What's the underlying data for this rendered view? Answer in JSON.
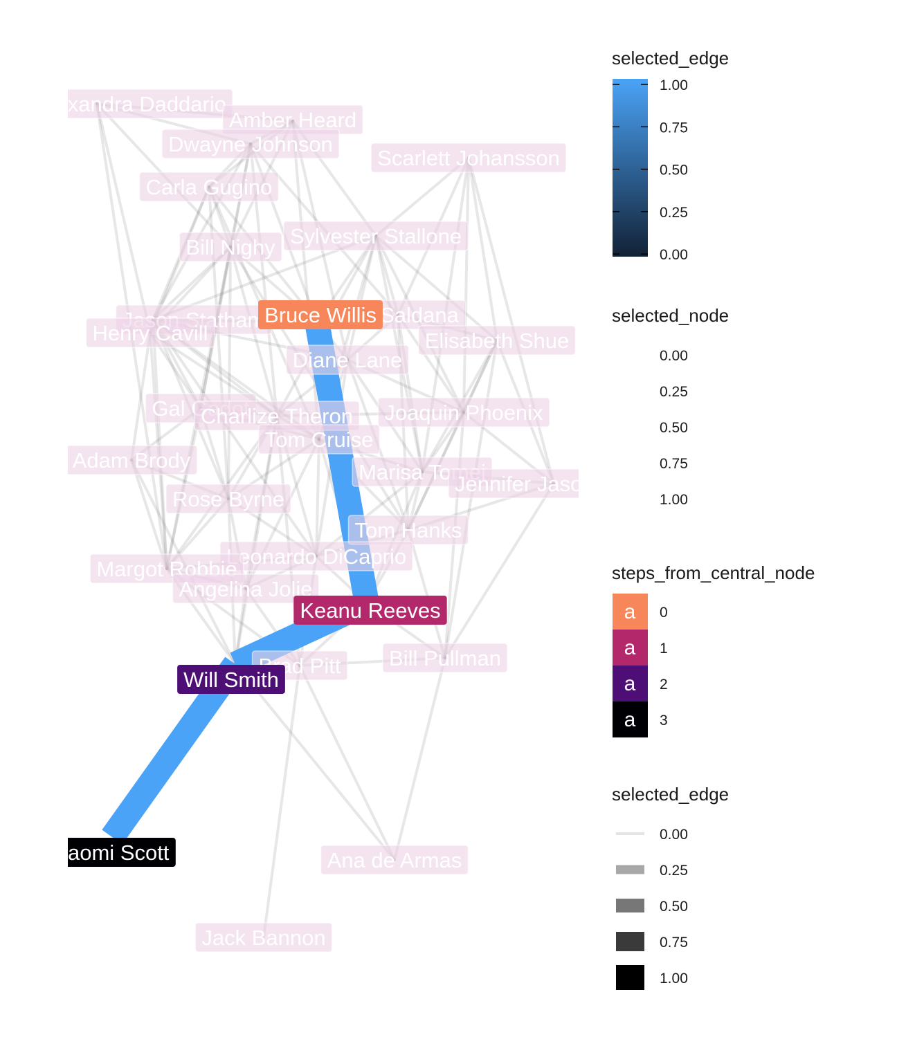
{
  "diagram": {
    "nodes": [
      {
        "id": "alexandra",
        "label": "Alexandra Daddario",
        "step": null,
        "selected": 0
      },
      {
        "id": "amber",
        "label": "Amber Heard",
        "step": null,
        "selected": 0
      },
      {
        "id": "dwayne",
        "label": "Dwayne Johnson",
        "step": null,
        "selected": 0
      },
      {
        "id": "scarlett",
        "label": "Scarlett Johansson",
        "step": null,
        "selected": 0
      },
      {
        "id": "carla",
        "label": "Carla Gugino",
        "step": null,
        "selected": 0
      },
      {
        "id": "sylvester",
        "label": "Sylvester Stallone",
        "step": null,
        "selected": 0
      },
      {
        "id": "billn",
        "label": "Bill Nighy",
        "step": null,
        "selected": 0
      },
      {
        "id": "jason",
        "label": "Jason Statham",
        "step": null,
        "selected": 0
      },
      {
        "id": "zoe",
        "label": "Zoe Saldana",
        "step": null,
        "selected": 0
      },
      {
        "id": "henry",
        "label": "Henry Cavill",
        "step": null,
        "selected": 0
      },
      {
        "id": "elisabeth",
        "label": "Elisabeth Shue",
        "step": null,
        "selected": 0
      },
      {
        "id": "diane",
        "label": "Diane Lane",
        "step": null,
        "selected": 0
      },
      {
        "id": "gal",
        "label": "Gal Gadot",
        "step": null,
        "selected": 0
      },
      {
        "id": "charlize",
        "label": "Charlize Theron",
        "step": null,
        "selected": 0
      },
      {
        "id": "joaquin",
        "label": "Joaquin Phoenix",
        "step": null,
        "selected": 0
      },
      {
        "id": "tomc",
        "label": "Tom Cruise",
        "step": null,
        "selected": 0
      },
      {
        "id": "adam",
        "label": "Adam Brody",
        "step": null,
        "selected": 0
      },
      {
        "id": "marisa",
        "label": "Marisa Tomei",
        "step": null,
        "selected": 0
      },
      {
        "id": "jennifer",
        "label": "Jennifer Jason Leigh",
        "step": null,
        "selected": 0
      },
      {
        "id": "rose",
        "label": "Rose Byrne",
        "step": null,
        "selected": 0
      },
      {
        "id": "tomh",
        "label": "Tom Hanks",
        "step": null,
        "selected": 0
      },
      {
        "id": "leonardo",
        "label": "Leonardo DiCaprio",
        "step": null,
        "selected": 0
      },
      {
        "id": "margot",
        "label": "Margot Robbie",
        "step": null,
        "selected": 0
      },
      {
        "id": "angelina",
        "label": "Angelina Jolie",
        "step": null,
        "selected": 0
      },
      {
        "id": "brad",
        "label": "Brad Pitt",
        "step": null,
        "selected": 0
      },
      {
        "id": "billp",
        "label": "Bill Pullman",
        "step": null,
        "selected": 0
      },
      {
        "id": "ana",
        "label": "Ana de Armas",
        "step": null,
        "selected": 0
      },
      {
        "id": "jack",
        "label": "Jack Bannon",
        "step": null,
        "selected": 0
      },
      {
        "id": "bruce",
        "label": "Bruce Willis",
        "step": 0,
        "selected": 1
      },
      {
        "id": "keanu",
        "label": "Keanu Reeves",
        "step": 1,
        "selected": 1
      },
      {
        "id": "will",
        "label": "Will Smith",
        "step": 2,
        "selected": 1
      },
      {
        "id": "naomi",
        "label": "Naomi Scott",
        "step": 3,
        "selected": 1
      }
    ],
    "highlighted_path": [
      "bruce",
      "keanu",
      "will",
      "naomi"
    ],
    "edges": [
      [
        "alexandra",
        "amber"
      ],
      [
        "alexandra",
        "dwayne"
      ],
      [
        "alexandra",
        "billn"
      ],
      [
        "alexandra",
        "henry"
      ],
      [
        "alexandra",
        "margot"
      ],
      [
        "amber",
        "dwayne"
      ],
      [
        "amber",
        "carla"
      ],
      [
        "amber",
        "billn"
      ],
      [
        "amber",
        "sylvester"
      ],
      [
        "amber",
        "diane"
      ],
      [
        "amber",
        "tomc"
      ],
      [
        "dwayne",
        "carla"
      ],
      [
        "dwayne",
        "billn"
      ],
      [
        "dwayne",
        "jason"
      ],
      [
        "dwayne",
        "bruce"
      ],
      [
        "dwayne",
        "zoe"
      ],
      [
        "dwayne",
        "gal"
      ],
      [
        "dwayne",
        "charlize"
      ],
      [
        "scarlett",
        "sylvester"
      ],
      [
        "scarlett",
        "zoe"
      ],
      [
        "scarlett",
        "elisabeth"
      ],
      [
        "scarlett",
        "marisa"
      ],
      [
        "scarlett",
        "jennifer"
      ],
      [
        "scarlett",
        "joaquin"
      ],
      [
        "carla",
        "billn"
      ],
      [
        "carla",
        "jason"
      ],
      [
        "carla",
        "henry"
      ],
      [
        "carla",
        "diane"
      ],
      [
        "carla",
        "tomc"
      ],
      [
        "carla",
        "rose"
      ],
      [
        "billn",
        "jason"
      ],
      [
        "billn",
        "bruce"
      ],
      [
        "billn",
        "henry"
      ],
      [
        "billn",
        "gal"
      ],
      [
        "billn",
        "charlize"
      ],
      [
        "billn",
        "rose"
      ],
      [
        "billn",
        "margot"
      ],
      [
        "billn",
        "tomh"
      ],
      [
        "sylvester",
        "bruce"
      ],
      [
        "sylvester",
        "zoe"
      ],
      [
        "sylvester",
        "diane"
      ],
      [
        "sylvester",
        "charlize"
      ],
      [
        "sylvester",
        "jason"
      ],
      [
        "sylvester",
        "tomc"
      ],
      [
        "sylvester",
        "marisa"
      ],
      [
        "sylvester",
        "elisabeth"
      ],
      [
        "sylvester",
        "joaquin"
      ],
      [
        "jason",
        "henry"
      ],
      [
        "jason",
        "bruce"
      ],
      [
        "jason",
        "diane"
      ],
      [
        "jason",
        "gal"
      ],
      [
        "jason",
        "charlize"
      ],
      [
        "jason",
        "rose"
      ],
      [
        "jason",
        "margot"
      ],
      [
        "jason",
        "leonardo"
      ],
      [
        "jason",
        "tomc"
      ],
      [
        "zoe",
        "elisabeth"
      ],
      [
        "zoe",
        "diane"
      ],
      [
        "zoe",
        "joaquin"
      ],
      [
        "zoe",
        "marisa"
      ],
      [
        "zoe",
        "tomh"
      ],
      [
        "henry",
        "gal"
      ],
      [
        "henry",
        "adam"
      ],
      [
        "henry",
        "margot"
      ],
      [
        "henry",
        "charlize"
      ],
      [
        "elisabeth",
        "joaquin"
      ],
      [
        "elisabeth",
        "marisa"
      ],
      [
        "elisabeth",
        "tomh"
      ],
      [
        "elisabeth",
        "billp"
      ],
      [
        "elisabeth",
        "jennifer"
      ],
      [
        "diane",
        "charlize"
      ],
      [
        "diane",
        "tomc"
      ],
      [
        "diane",
        "joaquin"
      ],
      [
        "diane",
        "marisa"
      ],
      [
        "diane",
        "tomh"
      ],
      [
        "diane",
        "leonardo"
      ],
      [
        "gal",
        "charlize"
      ],
      [
        "gal",
        "adam"
      ],
      [
        "gal",
        "rose"
      ],
      [
        "gal",
        "margot"
      ],
      [
        "gal",
        "tomc"
      ],
      [
        "charlize",
        "tomc"
      ],
      [
        "charlize",
        "joaquin"
      ],
      [
        "charlize",
        "rose"
      ],
      [
        "charlize",
        "leonardo"
      ],
      [
        "charlize",
        "angelina"
      ],
      [
        "charlize",
        "margot"
      ],
      [
        "charlize",
        "brad"
      ],
      [
        "joaquin",
        "marisa"
      ],
      [
        "joaquin",
        "tomh"
      ],
      [
        "joaquin",
        "jennifer"
      ],
      [
        "joaquin",
        "billp"
      ],
      [
        "tomc",
        "marisa"
      ],
      [
        "tomc",
        "rose"
      ],
      [
        "tomc",
        "leonardo"
      ],
      [
        "tomc",
        "angelina"
      ],
      [
        "tomc",
        "keanu"
      ],
      [
        "tomc",
        "tomh"
      ],
      [
        "adam",
        "rose"
      ],
      [
        "adam",
        "margot"
      ],
      [
        "adam",
        "will"
      ],
      [
        "marisa",
        "tomh"
      ],
      [
        "marisa",
        "jennifer"
      ],
      [
        "marisa",
        "keanu"
      ],
      [
        "marisa",
        "leonardo"
      ],
      [
        "jennifer",
        "billp"
      ],
      [
        "jennifer",
        "tomh"
      ],
      [
        "rose",
        "margot"
      ],
      [
        "rose",
        "leonardo"
      ],
      [
        "rose",
        "angelina"
      ],
      [
        "rose",
        "will"
      ],
      [
        "tomh",
        "leonardo"
      ],
      [
        "tomh",
        "keanu"
      ],
      [
        "tomh",
        "billp"
      ],
      [
        "leonardo",
        "angelina"
      ],
      [
        "leonardo",
        "keanu"
      ],
      [
        "leonardo",
        "brad"
      ],
      [
        "leonardo",
        "margot"
      ],
      [
        "margot",
        "angelina"
      ],
      [
        "margot",
        "will"
      ],
      [
        "margot",
        "brad"
      ],
      [
        "angelina",
        "brad"
      ],
      [
        "angelina",
        "will"
      ],
      [
        "brad",
        "billp"
      ],
      [
        "brad",
        "ana"
      ],
      [
        "brad",
        "jack"
      ],
      [
        "brad",
        "keanu"
      ],
      [
        "billp",
        "ana"
      ],
      [
        "billp",
        "keanu"
      ],
      [
        "will",
        "ana"
      ],
      [
        "will",
        "charlize"
      ],
      [
        "bruce",
        "keanu"
      ],
      [
        "keanu",
        "will"
      ],
      [
        "will",
        "naomi"
      ]
    ]
  },
  "legends": {
    "selected_edge_colour": {
      "title": "selected_edge",
      "labels": [
        "1.00",
        "0.75",
        "0.50",
        "0.25",
        "0.00"
      ],
      "high_color": "#4aa3f7",
      "low_color": "#122236"
    },
    "selected_node": {
      "title": "selected_node",
      "labels": [
        "0.00",
        "0.25",
        "0.50",
        "0.75",
        "1.00"
      ]
    },
    "steps_from_central_node": {
      "title": "steps_from_central_node",
      "swatch_glyph": "a",
      "items": [
        {
          "label": "0",
          "color": "#f7865a"
        },
        {
          "label": "1",
          "color": "#b3286b"
        },
        {
          "label": "2",
          "color": "#4d0f75"
        },
        {
          "label": "3",
          "color": "#000004"
        }
      ]
    },
    "selected_edge_width": {
      "title": "selected_edge",
      "items": [
        {
          "label": "0.00",
          "color": "#e4e4e4"
        },
        {
          "label": "0.25",
          "color": "#a8a8a8"
        },
        {
          "label": "0.50",
          "color": "#777777"
        },
        {
          "label": "0.75",
          "color": "#3a3a3a"
        },
        {
          "label": "1.00",
          "color": "#000000"
        }
      ]
    }
  },
  "colors": {
    "unselected_edge": "#7a7a7a",
    "selected_edge": "#4aa3f7",
    "unselected_node_fill": "#edd2e6",
    "node_text": "#ffffff"
  }
}
